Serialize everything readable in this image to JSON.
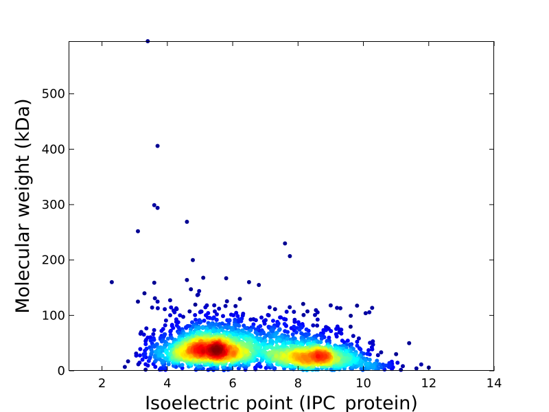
{
  "chart_data": {
    "type": "scatter",
    "title": "",
    "xlabel": "Isoelectric point (IPC_protein)",
    "ylabel": "Molecular weight (kDa)",
    "xlim": [
      1,
      14
    ],
    "ylim": [
      0,
      595
    ],
    "x_ticks": [
      2,
      4,
      6,
      8,
      10,
      12,
      14
    ],
    "y_ticks": [
      0,
      100,
      200,
      300,
      400,
      500
    ],
    "grid": false,
    "legend": "none",
    "colormap": "jet (point density: blue = sparse, red = dense)",
    "colors": {
      "sparse": "#00008f",
      "blue": "#0000ff",
      "cyan": "#00e5ff",
      "green": "#7dff7a",
      "yellow": "#ffea00",
      "orange": "#ff7a00",
      "dense": "#b40000"
    },
    "outliers": [
      {
        "x": 3.4,
        "y": 595
      },
      {
        "x": 3.7,
        "y": 406
      },
      {
        "x": 3.6,
        "y": 299
      },
      {
        "x": 3.7,
        "y": 294
      },
      {
        "x": 4.6,
        "y": 269
      },
      {
        "x": 3.1,
        "y": 252
      },
      {
        "x": 7.6,
        "y": 230
      },
      {
        "x": 7.75,
        "y": 207
      },
      {
        "x": 2.3,
        "y": 160
      },
      {
        "x": 4.6,
        "y": 164
      },
      {
        "x": 5.1,
        "y": 168
      },
      {
        "x": 5.8,
        "y": 167
      },
      {
        "x": 3.6,
        "y": 159
      },
      {
        "x": 6.5,
        "y": 160
      },
      {
        "x": 6.8,
        "y": 155
      },
      {
        "x": 3.3,
        "y": 140
      },
      {
        "x": 3.1,
        "y": 125
      },
      {
        "x": 3.7,
        "y": 125
      },
      {
        "x": 9.0,
        "y": 118
      },
      {
        "x": 11.4,
        "y": 50
      },
      {
        "x": 11.0,
        "y": 30
      },
      {
        "x": 12.0,
        "y": 6
      },
      {
        "x": 2.7,
        "y": 7
      },
      {
        "x": 3.2,
        "y": 70
      },
      {
        "x": 3.4,
        "y": 60
      }
    ],
    "clusters": [
      {
        "center_x": 5.3,
        "center_y": 32,
        "spread_x": 0.75,
        "spread_y": 20,
        "points": 1300
      },
      {
        "center_x": 8.5,
        "center_y": 22,
        "spread_x": 0.75,
        "spread_y": 15,
        "points": 900
      },
      {
        "center_x": 6.9,
        "center_y": 35,
        "spread_x": 0.8,
        "spread_y": 22,
        "points": 300
      },
      {
        "center_x": 5.3,
        "center_y": 80,
        "spread_x": 0.9,
        "spread_y": 25,
        "points": 160
      },
      {
        "center_x": 8.0,
        "center_y": 70,
        "spread_x": 0.9,
        "spread_y": 22,
        "points": 110
      },
      {
        "center_x": 4.0,
        "center_y": 25,
        "spread_x": 0.45,
        "spread_y": 20,
        "points": 120
      },
      {
        "center_x": 10.2,
        "center_y": 8,
        "spread_x": 0.6,
        "spread_y": 5,
        "points": 90
      }
    ]
  }
}
